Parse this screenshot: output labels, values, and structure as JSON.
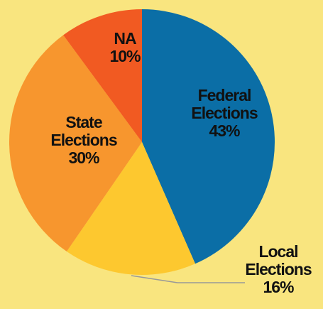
{
  "chart_data": {
    "type": "pie",
    "categories": [
      "Federal Elections",
      "Local Elections",
      "State Elections",
      "NA"
    ],
    "values": [
      43,
      16,
      30,
      10
    ],
    "value_labels": [
      "43%",
      "16%",
      "30%",
      "10%"
    ],
    "colors": [
      "#0b6ea6",
      "#fdc82f",
      "#f7962e",
      "#f15a22"
    ]
  }
}
